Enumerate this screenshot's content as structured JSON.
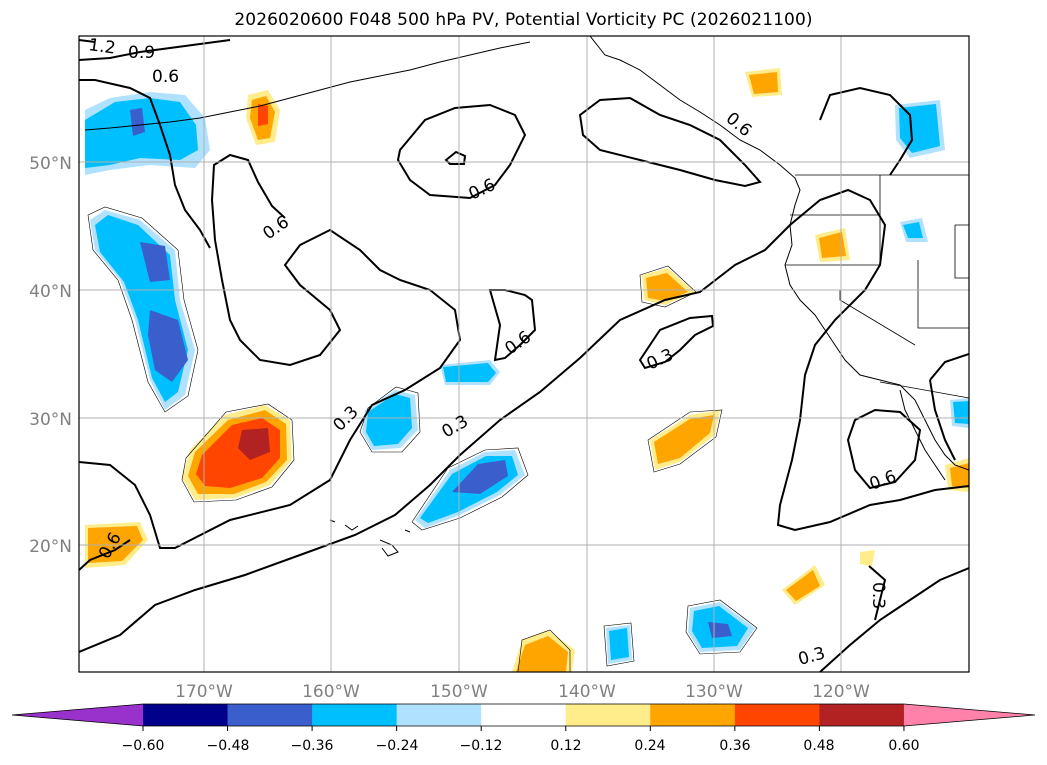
{
  "title": "2026020600 F048 500 hPa PV, Potential Vorticity PC (2026021100)",
  "axes": {
    "lat_labels": [
      "50°N",
      "40°N",
      "30°N",
      "20°N"
    ],
    "lon_labels": [
      "170°W",
      "160°W",
      "150°W",
      "140°W",
      "130°W",
      "120°W"
    ]
  },
  "contour_labels": [
    "1.2",
    "0.9",
    "0.6",
    "0.6",
    "0.6",
    "0.6",
    "0.3",
    "0.3",
    "0.6",
    "0.3",
    "0.6",
    "0.6",
    "0.3",
    "0.3"
  ],
  "colorbar": {
    "ticks": [
      "−0.60",
      "−0.48",
      "−0.36",
      "−0.24",
      "−0.12",
      "0.12",
      "0.24",
      "0.36",
      "0.48",
      "0.60"
    ],
    "colors": [
      "#9932cc",
      "#00008b",
      "#3a5fcd",
      "#00bfff",
      "#b0e2ff",
      "#ffffff",
      "#ffec8b",
      "#ffa500",
      "#ff4500",
      "#b22222",
      "#ff82ab"
    ]
  }
}
